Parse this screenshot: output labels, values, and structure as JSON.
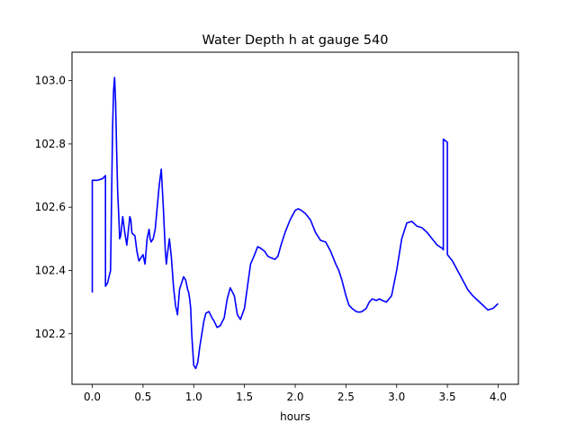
{
  "chart_data": {
    "type": "line",
    "title": "Water Depth h at gauge 540",
    "xlabel": "hours",
    "ylabel": "",
    "xlim": [
      -0.2,
      4.2
    ],
    "ylim": [
      102.04,
      103.09
    ],
    "grid": false,
    "x_ticks": [
      0.0,
      0.5,
      1.0,
      1.5,
      2.0,
      2.5,
      3.0,
      3.5,
      4.0
    ],
    "x_tick_labels": [
      "0.0",
      "0.5",
      "1.0",
      "1.5",
      "2.0",
      "2.5",
      "3.0",
      "3.5",
      "4.0"
    ],
    "y_ticks": [
      102.2,
      102.4,
      102.6,
      102.8,
      103.0
    ],
    "y_tick_labels": [
      "102.2",
      "102.4",
      "102.6",
      "102.8",
      "103.0"
    ],
    "series": [
      {
        "color": "#0000ff",
        "x": [
          0.0,
          0.0,
          0.05,
          0.1,
          0.13,
          0.13,
          0.15,
          0.18,
          0.2,
          0.21,
          0.22,
          0.23,
          0.24,
          0.25,
          0.26,
          0.27,
          0.28,
          0.29,
          0.3,
          0.32,
          0.34,
          0.36,
          0.37,
          0.38,
          0.39,
          0.4,
          0.42,
          0.44,
          0.46,
          0.48,
          0.5,
          0.52,
          0.54,
          0.56,
          0.57,
          0.58,
          0.6,
          0.62,
          0.64,
          0.66,
          0.68,
          0.7,
          0.72,
          0.73,
          0.74,
          0.76,
          0.78,
          0.8,
          0.82,
          0.84,
          0.86,
          0.88,
          0.9,
          0.92,
          0.94,
          0.95,
          0.96,
          0.97,
          0.98,
          1.0,
          1.02,
          1.04,
          1.06,
          1.08,
          1.1,
          1.12,
          1.15,
          1.18,
          1.2,
          1.23,
          1.26,
          1.3,
          1.33,
          1.36,
          1.4,
          1.43,
          1.46,
          1.5,
          1.53,
          1.56,
          1.6,
          1.63,
          1.66,
          1.7,
          1.73,
          1.76,
          1.8,
          1.83,
          1.86,
          1.9,
          1.95,
          2.0,
          2.03,
          2.06,
          2.1,
          2.15,
          2.2,
          2.25,
          2.3,
          2.35,
          2.4,
          2.43,
          2.46,
          2.5,
          2.53,
          2.56,
          2.6,
          2.63,
          2.66,
          2.7,
          2.73,
          2.76,
          2.8,
          2.83,
          2.86,
          2.9,
          2.95,
          3.0,
          3.05,
          3.1,
          3.15,
          3.2,
          3.25,
          3.3,
          3.35,
          3.4,
          3.45,
          3.46,
          3.46,
          3.5,
          3.5,
          3.55,
          3.6,
          3.65,
          3.7,
          3.75,
          3.8,
          3.85,
          3.9,
          3.95,
          4.0
        ],
        "y": [
          102.33,
          102.685,
          102.685,
          102.69,
          102.7,
          102.35,
          102.36,
          102.4,
          102.85,
          102.97,
          103.01,
          102.93,
          102.78,
          102.65,
          102.58,
          102.5,
          102.51,
          102.54,
          102.57,
          102.52,
          102.48,
          102.54,
          102.57,
          102.56,
          102.52,
          102.515,
          102.51,
          102.46,
          102.43,
          102.44,
          102.45,
          102.42,
          102.5,
          102.53,
          102.5,
          102.49,
          102.5,
          102.53,
          102.6,
          102.67,
          102.72,
          102.6,
          102.46,
          102.42,
          102.45,
          102.5,
          102.44,
          102.35,
          102.29,
          102.26,
          102.34,
          102.36,
          102.38,
          102.37,
          102.34,
          102.33,
          102.31,
          102.28,
          102.2,
          102.1,
          102.09,
          102.11,
          102.16,
          102.2,
          102.24,
          102.265,
          102.27,
          102.25,
          102.24,
          102.22,
          102.225,
          102.25,
          102.31,
          102.345,
          102.32,
          102.26,
          102.245,
          102.28,
          102.35,
          102.42,
          102.45,
          102.475,
          102.47,
          102.46,
          102.445,
          102.44,
          102.435,
          102.445,
          102.48,
          102.52,
          102.56,
          102.59,
          102.595,
          102.59,
          102.58,
          102.56,
          102.52,
          102.495,
          102.49,
          102.46,
          102.42,
          102.4,
          102.37,
          102.32,
          102.29,
          102.28,
          102.27,
          102.268,
          102.27,
          102.28,
          102.3,
          102.31,
          102.305,
          102.31,
          102.305,
          102.3,
          102.32,
          102.4,
          102.5,
          102.55,
          102.555,
          102.54,
          102.535,
          102.52,
          102.5,
          102.48,
          102.47,
          102.465,
          102.815,
          102.805,
          102.45,
          102.43,
          102.4,
          102.37,
          102.34,
          102.32,
          102.305,
          102.29,
          102.275,
          102.28,
          102.295
        ]
      }
    ]
  }
}
